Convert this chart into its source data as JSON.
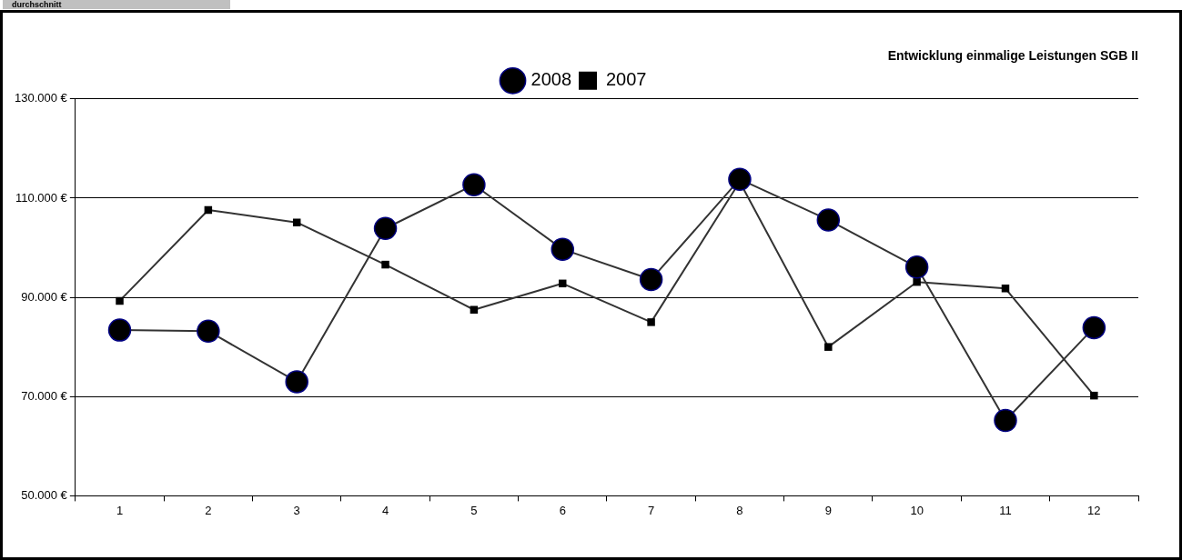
{
  "chart_data": {
    "type": "line",
    "title": "Entwicklung einmalige Leistungen SGB II",
    "annotations": [
      "durchschnitt"
    ],
    "categories": [
      "1",
      "2",
      "3",
      "4",
      "5",
      "6",
      "7",
      "8",
      "9",
      "10",
      "11",
      "12"
    ],
    "series": [
      {
        "name": "2008",
        "color": "#000000",
        "marker": "circle",
        "values": [
          83400,
          83200,
          73000,
          103900,
          112700,
          99700,
          93600,
          113800,
          105600,
          96100,
          65200,
          83900
        ]
      },
      {
        "name": "2007",
        "color": "#000000",
        "marker": "square",
        "values": [
          89300,
          107600,
          105100,
          96600,
          87500,
          92800,
          85000,
          113300,
          80000,
          93100,
          91800,
          70200
        ]
      }
    ],
    "ylim": [
      50000,
      130000
    ],
    "yticks": [
      {
        "value": 50000,
        "label": "50.000 €"
      },
      {
        "value": 70000,
        "label": "70.000 €"
      },
      {
        "value": 90000,
        "label": "90.000 €"
      },
      {
        "value": 110000,
        "label": "110.000 €"
      },
      {
        "value": 130000,
        "label": "130.000 €"
      }
    ],
    "grid": "y",
    "legend": "top"
  }
}
